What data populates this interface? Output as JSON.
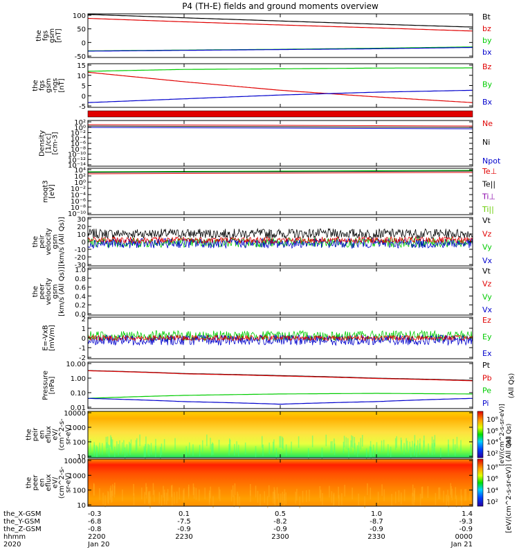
{
  "title": "P4 (TH-E) fields and ground moments overview",
  "colors": {
    "black": "#000000",
    "red": "#e00000",
    "green": "#00cc00",
    "blue": "#0000cc",
    "lime": "#66cc00",
    "purple": "#8800aa"
  },
  "panels": [
    {
      "id": "fgs-gsm",
      "ylabel": [
        "the",
        "fgs",
        "gsm",
        "[nT]"
      ],
      "yticks": [
        "100",
        "50",
        "0",
        "-50"
      ],
      "ymin": -60,
      "ymax": 105,
      "scale": "linear",
      "legend": [
        {
          "label": "Bt",
          "color": "black"
        },
        {
          "label": "bz",
          "color": "red"
        },
        {
          "label": "by",
          "color": "green"
        },
        {
          "label": "bx",
          "color": "blue"
        }
      ]
    },
    {
      "id": "fgs-dsl",
      "ylabel": [
        "the",
        "fgs",
        "gsm",
        "-ngs",
        "[nT]"
      ],
      "yticks": [
        "15",
        "10",
        "5",
        "0",
        "-5"
      ],
      "ymin": -7,
      "ymax": 16,
      "scale": "linear",
      "legend": [
        {
          "label": "Bz",
          "color": "red"
        },
        {
          "label": "By",
          "color": "green"
        },
        {
          "label": "Bx",
          "color": "blue"
        }
      ]
    },
    {
      "id": "density",
      "ylabel": [
        "Density",
        "[1/cc]",
        "[cm-3]"
      ],
      "yticks": [
        "10²",
        "10⁰",
        "10⁻²",
        "10⁻⁴",
        "10⁻⁶",
        "10⁻⁸",
        "10⁻¹⁰",
        "10⁻¹²",
        "10⁻¹⁴"
      ],
      "scale": "log",
      "legend": [
        {
          "label": "Ne",
          "color": "red"
        },
        {
          "label": "Ni",
          "color": "black"
        },
        {
          "label": "Npot",
          "color": "blue"
        }
      ]
    },
    {
      "id": "temperature",
      "ylabel": [
        "moqt3",
        "[eV]"
      ],
      "yticks": [
        "10⁴",
        "10²",
        "10⁰",
        "10⁻²",
        "10⁻⁴",
        "10⁻⁶",
        "10⁻⁸",
        "10⁻¹⁰"
      ],
      "scale": "log",
      "legend": [
        {
          "label": "Te⊥",
          "color": "red"
        },
        {
          "label": "Te||",
          "color": "black"
        },
        {
          "label": "Ti⊥",
          "color": "purple"
        },
        {
          "label": "Ti||",
          "color": "lime"
        }
      ]
    },
    {
      "id": "peir-velocity",
      "ylabel": [
        "the",
        "peir",
        "velocity",
        "gsm",
        "[km/s (All Qs)]"
      ],
      "yticks": [
        "30",
        "20",
        "10",
        "0",
        "-10",
        "-20",
        "-30"
      ],
      "ymin": -30,
      "ymax": 30,
      "scale": "linear",
      "legend": [
        {
          "label": "Vt",
          "color": "black"
        },
        {
          "label": "Vz",
          "color": "red"
        },
        {
          "label": "Vy",
          "color": "green"
        },
        {
          "label": "Vx",
          "color": "blue"
        }
      ]
    },
    {
      "id": "peer-velocity",
      "ylabel": [
        "the",
        "peer",
        "velocity",
        "gsm",
        "[km/s (All Qs)]"
      ],
      "yticks": [
        "1.0",
        "0.8",
        "0.6",
        "0.4",
        "0.2",
        "0.0"
      ],
      "ymin": 0,
      "ymax": 1,
      "scale": "linear",
      "legend": [
        {
          "label": "Vt",
          "color": "black"
        },
        {
          "label": "Vz",
          "color": "red"
        },
        {
          "label": "Vy",
          "color": "green"
        },
        {
          "label": "Vx",
          "color": "blue"
        }
      ]
    },
    {
      "id": "efield",
      "ylabel": [
        "E=-VxB",
        "[mV/m]"
      ],
      "yticks": [
        "2",
        "1",
        "0",
        "-1",
        "-2"
      ],
      "ymin": -2,
      "ymax": 2,
      "scale": "linear",
      "legend": [
        {
          "label": "Ez",
          "color": "red"
        },
        {
          "label": "Ey",
          "color": "green"
        },
        {
          "label": "Ex",
          "color": "blue"
        }
      ]
    },
    {
      "id": "pressure",
      "ylabel": [
        "Pressure",
        "[nPa]"
      ],
      "yticks": [
        "10.00",
        "1.00",
        "0.10",
        "0.01"
      ],
      "scale": "log",
      "legend": [
        {
          "label": "Pt",
          "color": "black"
        },
        {
          "label": "Pb",
          "color": "red"
        },
        {
          "label": "Pe",
          "color": "green"
        },
        {
          "label": "Pi",
          "color": "blue"
        }
      ]
    },
    {
      "id": "peir-eflux",
      "ylabel": [
        "the",
        "peir",
        "en",
        "eflux",
        "eV/",
        "(cm^2-s-",
        "sr-eV)"
      ],
      "yticks": [
        "10000",
        "1000",
        "100",
        "10"
      ],
      "scale": "spectrogram"
    },
    {
      "id": "peer-eflux",
      "ylabel": [
        "the",
        "peer",
        "en",
        "eflux",
        "eV/",
        "(cm^2-s-",
        "sr-eV)"
      ],
      "yticks": [
        "10000",
        "1000",
        "100",
        "10"
      ],
      "scale": "spectrogram"
    }
  ],
  "colorbar": {
    "ticks_top": [
      "10⁸",
      "10⁶",
      "10⁴",
      "10²"
    ],
    "ticks_bottom": [
      "10⁸",
      "10⁶",
      "10⁴",
      "10²"
    ],
    "label": "[eV/(cm^2-s-sr-eV)] (All Qs)",
    "label_top": "[eV/(cm^2-s-sr-eV)]",
    "label_side": "(All Qs)"
  },
  "pressure_side_label": "(All Qs)",
  "xaxis": {
    "row_labels": [
      "the_X-GSM",
      "the_Y-GSM",
      "the_Z-GSM",
      "hhmm",
      "2020"
    ],
    "columns": [
      [
        "-0.3",
        "-6.8",
        "-0.8",
        "2200",
        "Jan 20"
      ],
      [
        "0.1",
        "-7.5",
        "-0.9",
        "2230",
        ""
      ],
      [
        "0.5",
        "-8.2",
        "-0.9",
        "2300",
        ""
      ],
      [
        "1.0",
        "-8.7",
        "-0.9",
        "2330",
        ""
      ],
      [
        "1.4",
        "-9.3",
        "-0.9",
        "0000",
        "Jan 21"
      ]
    ]
  },
  "chart_data": {
    "type": "line",
    "title": "P4 (TH-E) fields and ground moments overview",
    "x": [
      "2200",
      "2230",
      "2300",
      "2330",
      "0000"
    ],
    "xlabel": "hhmm",
    "series": [
      {
        "panel": "fgs-gsm",
        "name": "Bt",
        "values": [
          103,
          90,
          78,
          66,
          55
        ]
      },
      {
        "panel": "fgs-gsm",
        "name": "bz",
        "values": [
          88,
          75,
          63,
          52,
          40
        ]
      },
      {
        "panel": "fgs-gsm",
        "name": "by",
        "values": [
          -35,
          -32,
          -29,
          -25,
          -20
        ]
      },
      {
        "panel": "fgs-gsm",
        "name": "bx",
        "values": [
          -36,
          -33,
          -30,
          -27,
          -22
        ]
      },
      {
        "panel": "fgs-dsl",
        "name": "Bz",
        "values": [
          11.5,
          6.5,
          2.0,
          -1.5,
          -4.5
        ]
      },
      {
        "panel": "fgs-dsl",
        "name": "By",
        "values": [
          12.0,
          13.0,
          13.3,
          13.7,
          13.8
        ]
      },
      {
        "panel": "fgs-dsl",
        "name": "Bx",
        "values": [
          -4.5,
          -2.5,
          -0.5,
          1.0,
          2.0
        ]
      },
      {
        "panel": "pressure",
        "name": "Pt",
        "values": [
          4.0,
          2.5,
          1.8,
          1.2,
          0.85
        ]
      },
      {
        "panel": "pressure",
        "name": "Pb",
        "values": [
          3.9,
          2.4,
          1.7,
          1.15,
          0.8
        ]
      },
      {
        "panel": "pressure",
        "name": "Pe",
        "values": [
          0.05,
          0.08,
          0.1,
          0.11,
          0.1
        ]
      },
      {
        "panel": "pressure",
        "name": "Pi",
        "values": [
          0.05,
          0.03,
          0.02,
          0.03,
          0.05
        ]
      }
    ]
  }
}
